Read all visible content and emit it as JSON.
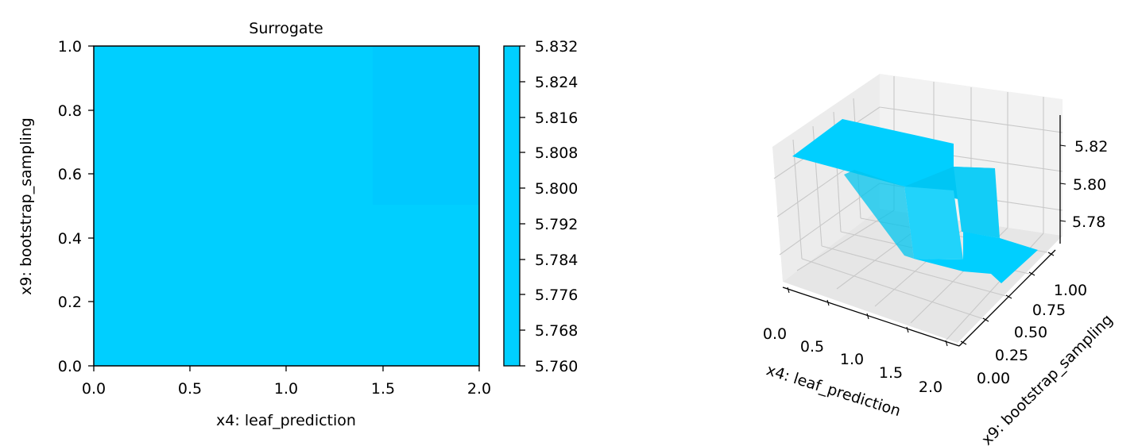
{
  "chart_data": [
    {
      "type": "heatmap",
      "title": "Surrogate",
      "xlabel": "x4: leaf_prediction",
      "ylabel": "x9: bootstrap_sampling",
      "xlim": [
        0,
        2
      ],
      "ylim": [
        0,
        1
      ],
      "xticks": [
        "0.0",
        "0.5",
        "1.0",
        "1.5",
        "2.0"
      ],
      "yticks": [
        "0.0",
        "0.2",
        "0.4",
        "0.6",
        "0.8",
        "1.0"
      ],
      "regions": [
        {
          "x": [
            0,
            2
          ],
          "y": [
            0,
            1
          ],
          "value": 5.7995
        },
        {
          "x": [
            1.45,
            2
          ],
          "y": [
            0.5,
            1
          ],
          "value": 5.8025
        }
      ],
      "colorbar": {
        "min": 5.76,
        "max": 5.832,
        "ticks": [
          "5.760",
          "5.768",
          "5.776",
          "5.784",
          "5.792",
          "5.800",
          "5.808",
          "5.816",
          "5.824",
          "5.832"
        ]
      },
      "colors": {
        "base": "#00cfff",
        "upper_right": "#00c9ff"
      }
    },
    {
      "type": "surface",
      "xlabel": "x4: leaf_prediction",
      "ylabel": "x9: bootstrap_sampling",
      "zlabel": "",
      "xlim": [
        0,
        2
      ],
      "ylim": [
        0,
        1
      ],
      "xticks": [
        "0.0",
        "0.5",
        "1.0",
        "1.5",
        "2.0"
      ],
      "yticks": [
        "0.00",
        "0.25",
        "0.50",
        "0.75",
        "1.00"
      ],
      "zticks": [
        "5.78",
        "5.80",
        "5.82"
      ],
      "color": "#00cfff"
    }
  ]
}
